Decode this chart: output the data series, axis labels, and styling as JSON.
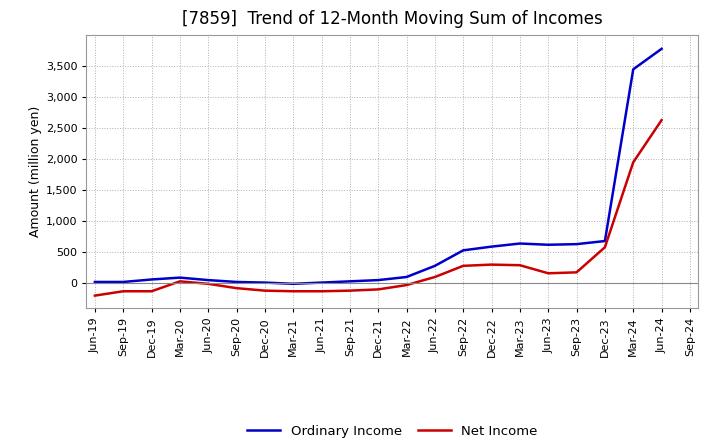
{
  "title": "[7859]  Trend of 12-Month Moving Sum of Incomes",
  "ylabel": "Amount (million yen)",
  "background_color": "#ffffff",
  "grid_color": "#b0b0b0",
  "x_labels": [
    "Jun-19",
    "Sep-19",
    "Dec-19",
    "Mar-20",
    "Jun-20",
    "Sep-20",
    "Dec-20",
    "Mar-21",
    "Jun-21",
    "Sep-21",
    "Dec-21",
    "Mar-22",
    "Jun-22",
    "Sep-22",
    "Dec-22",
    "Mar-23",
    "Jun-23",
    "Sep-23",
    "Dec-23",
    "Mar-24",
    "Jun-24",
    "Sep-24"
  ],
  "ordinary_income": [
    20,
    20,
    60,
    90,
    50,
    20,
    10,
    -10,
    10,
    30,
    50,
    100,
    280,
    530,
    590,
    640,
    620,
    630,
    680,
    3450,
    3780,
    null
  ],
  "net_income": [
    -200,
    -130,
    -130,
    30,
    -10,
    -80,
    -120,
    -130,
    -130,
    -120,
    -100,
    -30,
    100,
    280,
    300,
    290,
    160,
    175,
    580,
    1950,
    2630,
    null
  ],
  "ordinary_color": "#0000cc",
  "net_color": "#cc0000",
  "ylim": [
    -400,
    4000
  ],
  "yticks": [
    0,
    500,
    1000,
    1500,
    2000,
    2500,
    3000,
    3500
  ],
  "line_width": 1.8,
  "title_fontsize": 12,
  "legend_fontsize": 9.5,
  "tick_fontsize": 8
}
